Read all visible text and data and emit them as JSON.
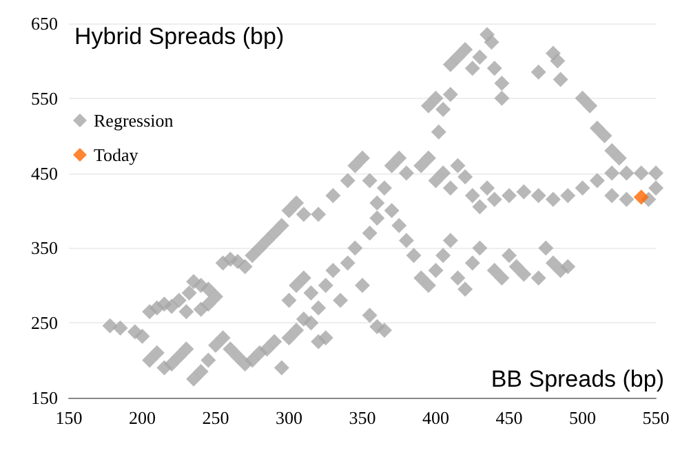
{
  "chart_data": {
    "type": "scatter",
    "xlabel": "BB Spreads (bp)",
    "ylabel": "Hybrid Spreads (bp)",
    "xlim": [
      150,
      550
    ],
    "xticks": [
      150,
      200,
      250,
      300,
      350,
      400,
      450,
      500,
      550
    ],
    "ylim": [
      150,
      650
    ],
    "yticks": [
      150,
      250,
      350,
      450,
      550,
      650
    ],
    "grid": "y",
    "legend": "top left",
    "marker": "diamond",
    "series": [
      {
        "name": "Regression",
        "color": "#a6a6a6",
        "x": [
          178,
          185,
          195,
          200,
          205,
          210,
          215,
          220,
          225,
          232,
          235,
          240,
          245,
          250,
          230,
          240,
          245,
          255,
          260,
          265,
          270,
          275,
          280,
          285,
          290,
          295,
          300,
          305,
          310,
          205,
          210,
          215,
          220,
          225,
          230,
          235,
          240,
          245,
          250,
          255,
          260,
          265,
          270,
          275,
          280,
          285,
          290,
          295,
          300,
          305,
          310,
          315,
          320,
          325,
          300,
          305,
          310,
          315,
          320,
          325,
          330,
          335,
          340,
          345,
          350,
          355,
          360,
          365,
          355,
          360,
          370,
          375,
          380,
          385,
          390,
          395,
          400,
          405,
          410,
          415,
          420,
          425,
          430,
          440,
          445,
          450,
          455,
          460,
          470,
          475,
          480,
          485,
          490,
          320,
          330,
          340,
          345,
          350,
          355,
          360,
          365,
          370,
          375,
          380,
          390,
          395,
          400,
          405,
          410,
          415,
          420,
          425,
          430,
          435,
          440,
          450,
          460,
          470,
          480,
          490,
          500,
          510,
          520,
          530,
          545,
          550,
          395,
          400,
          405,
          410,
          402,
          410,
          415,
          420,
          425,
          430,
          435,
          438,
          440,
          445,
          445,
          470,
          480,
          483,
          485,
          500,
          505,
          510,
          515,
          520,
          525,
          520,
          530,
          540,
          550
        ],
        "values": [
          246,
          243,
          238,
          232,
          265,
          270,
          275,
          272,
          280,
          290,
          305,
          300,
          295,
          285,
          265,
          268,
          275,
          330,
          335,
          332,
          325,
          340,
          350,
          360,
          370,
          380,
          400,
          410,
          395,
          200,
          210,
          190,
          195,
          205,
          215,
          175,
          185,
          200,
          220,
          230,
          215,
          205,
          195,
          200,
          210,
          215,
          225,
          190,
          230,
          240,
          255,
          250,
          225,
          230,
          280,
          300,
          310,
          290,
          270,
          300,
          320,
          280,
          330,
          350,
          300,
          260,
          245,
          240,
          370,
          390,
          400,
          380,
          360,
          340,
          310,
          300,
          320,
          340,
          360,
          310,
          295,
          330,
          350,
          320,
          310,
          340,
          325,
          315,
          310,
          350,
          330,
          320,
          325,
          395,
          420,
          440,
          460,
          470,
          440,
          410,
          430,
          460,
          470,
          450,
          460,
          470,
          440,
          450,
          430,
          460,
          445,
          420,
          405,
          430,
          415,
          420,
          425,
          420,
          415,
          420,
          430,
          440,
          420,
          415,
          415,
          430,
          540,
          550,
          535,
          555,
          505,
          595,
          605,
          615,
          590,
          605,
          635,
          625,
          590,
          570,
          550,
          585,
          610,
          600,
          575,
          550,
          540,
          510,
          500,
          480,
          470,
          450,
          450,
          450,
          450
        ]
      },
      {
        "name": "Today",
        "color": "#ff6600",
        "x": [
          540
        ],
        "values": [
          418
        ]
      }
    ]
  }
}
